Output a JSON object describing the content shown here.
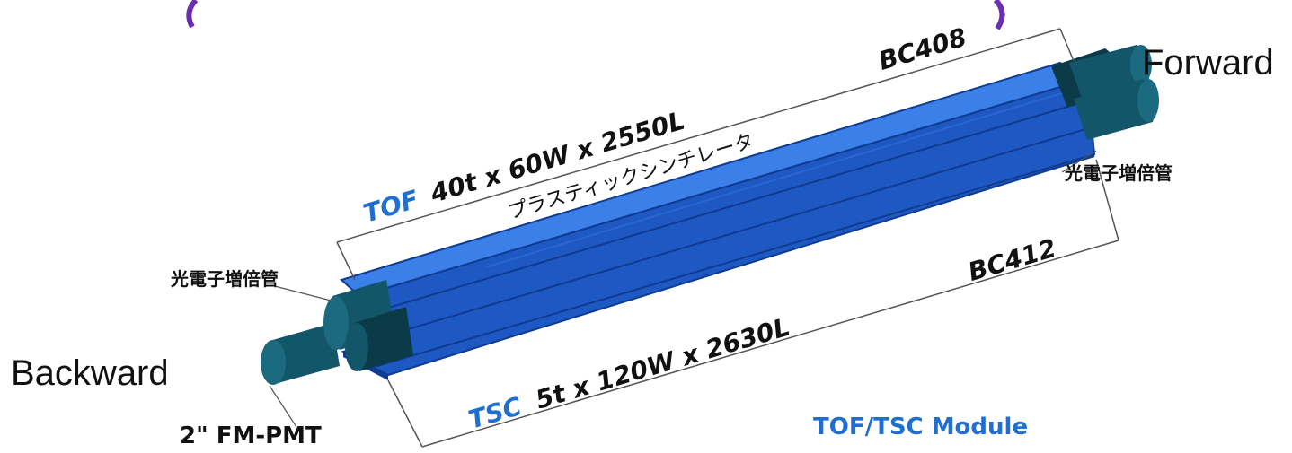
{
  "directions": {
    "forward": "Forward",
    "backward": "Backward"
  },
  "tof": {
    "name": "TOF",
    "dims": "40t  x  60W  x  2550L",
    "material": "BC408",
    "descriptor": "プラスティックシンチレータ"
  },
  "tsc": {
    "name": "TSC",
    "dims": "5t  x  120W  x  2630L",
    "material": "BC412"
  },
  "pmt_label": "光電子増倍管",
  "pmt_model": "2\"  FM-PMT",
  "module_label": "TOF/TSC  Module",
  "colors": {
    "bar_top": "#3b7fe8",
    "bar_front": "#1e58c2",
    "bar_edge": "#0f3c8f",
    "pmt_dark": "#13566a",
    "pmt_shadow": "#0b3a49",
    "label_blue": "#1f6fd1",
    "title_purple": "#6a2fb0"
  }
}
